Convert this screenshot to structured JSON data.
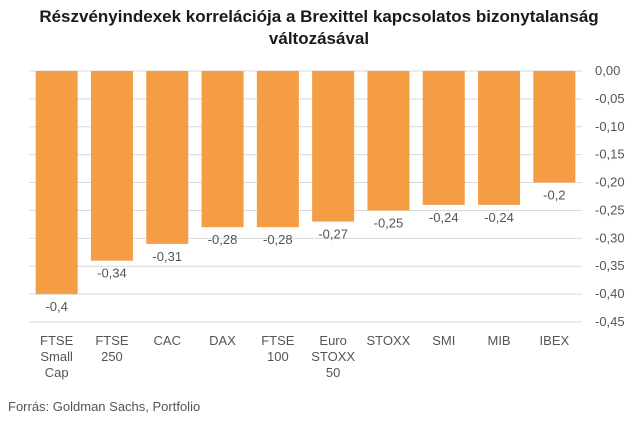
{
  "title_lines": [
    "Részvényindexek korrelációja a Brexittel kapcsolatos bizonytalanság",
    "változásával"
  ],
  "source": "Forrás: Goldman Sachs, Portfolio",
  "colors": {
    "bar": "#F59D45",
    "grid": "#d9d9d9",
    "text": "#555555"
  },
  "chart_data": {
    "type": "bar",
    "title": "Részvényindexek korrelációja a Brexittel kapcsolatos bizonytalanság változásával",
    "categories": [
      [
        "FTSE",
        "Small",
        "Cap"
      ],
      [
        "FTSE",
        "250"
      ],
      [
        "CAC"
      ],
      [
        "DAX"
      ],
      [
        "FTSE",
        "100"
      ],
      [
        "Euro",
        "STOXX",
        "50"
      ],
      [
        "STOXX"
      ],
      [
        "SMI"
      ],
      [
        "MIB"
      ],
      [
        "IBEX"
      ]
    ],
    "values": [
      -0.4,
      -0.34,
      -0.31,
      -0.28,
      -0.28,
      -0.27,
      -0.25,
      -0.24,
      -0.24,
      -0.2
    ],
    "value_labels": [
      "-0,4",
      "-0,34",
      "-0,31",
      "-0,28",
      "-0,28",
      "-0,27",
      "-0,25",
      "-0,24",
      "-0,24",
      "-0,2"
    ],
    "y_ticks": [
      0,
      -0.05,
      -0.1,
      -0.15,
      -0.2,
      -0.25,
      -0.3,
      -0.35,
      -0.4,
      -0.45
    ],
    "y_tick_labels": [
      "0,00",
      "-0,05",
      "-0,10",
      "-0,15",
      "-0,20",
      "-0,25",
      "-0,30",
      "-0,35",
      "-0,40",
      "-0,45"
    ],
    "ylim": [
      -0.45,
      0
    ],
    "y_axis_position": "right",
    "grid": true,
    "xlabel": "",
    "ylabel": ""
  }
}
